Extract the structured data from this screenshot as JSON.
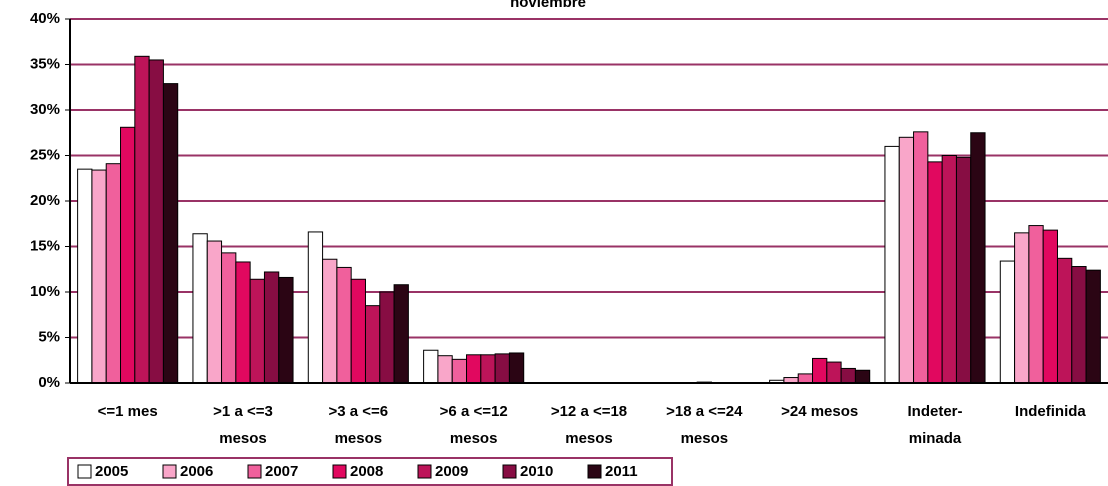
{
  "chart_data": {
    "type": "bar",
    "title": "noviembre",
    "categories": [
      [
        "<=1 mes"
      ],
      [
        ">1 a <=3",
        "mesos"
      ],
      [
        ">3 a <=6",
        "mesos"
      ],
      [
        ">6 a <=12",
        "mesos"
      ],
      [
        ">12 a <=18",
        "mesos"
      ],
      [
        ">18 a <=24",
        "mesos"
      ],
      [
        ">24 mesos"
      ],
      [
        "Indeter-",
        "minada"
      ],
      [
        "Indefinida"
      ]
    ],
    "series": [
      {
        "name": "2005",
        "color": "#ffffff",
        "values": [
          23.5,
          16.4,
          16.6,
          3.6,
          0.05,
          0.05,
          0.3,
          26.0,
          13.4
        ]
      },
      {
        "name": "2006",
        "color": "#f9a6c9",
        "values": [
          23.4,
          15.6,
          13.6,
          3.0,
          0.05,
          0.05,
          0.6,
          27.0,
          16.5
        ]
      },
      {
        "name": "2007",
        "color": "#f0609c",
        "values": [
          24.1,
          14.3,
          12.7,
          2.6,
          0.05,
          0.05,
          1.0,
          27.6,
          17.3
        ]
      },
      {
        "name": "2008",
        "color": "#e1085f",
        "values": [
          28.1,
          13.3,
          11.4,
          3.1,
          0.05,
          0.1,
          2.7,
          24.3,
          16.8
        ]
      },
      {
        "name": "2009",
        "color": "#bd1459",
        "values": [
          35.9,
          11.4,
          8.5,
          3.1,
          0.05,
          0.05,
          2.3,
          25.0,
          13.7
        ]
      },
      {
        "name": "2010",
        "color": "#870d43",
        "values": [
          35.5,
          12.2,
          10.0,
          3.2,
          0.05,
          0.05,
          1.6,
          24.8,
          12.8
        ]
      },
      {
        "name": "2011",
        "color": "#2b0514",
        "values": [
          32.9,
          11.6,
          10.8,
          3.3,
          0.05,
          0.05,
          1.4,
          27.5,
          12.4
        ]
      }
    ],
    "ylim": [
      0,
      40
    ],
    "yticks": [
      {
        "value": 0,
        "label": "0%"
      },
      {
        "value": 5,
        "label": "5%"
      },
      {
        "value": 10,
        "label": "10%"
      },
      {
        "value": 15,
        "label": "15%"
      },
      {
        "value": 20,
        "label": "20%"
      },
      {
        "value": 25,
        "label": "25%"
      },
      {
        "value": 30,
        "label": "30%"
      },
      {
        "value": 35,
        "label": "35%"
      },
      {
        "value": 40,
        "label": "40%"
      }
    ],
    "grid": true,
    "legend": "bottom-left"
  }
}
